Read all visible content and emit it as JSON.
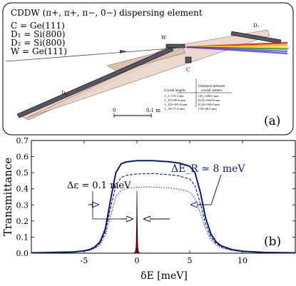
{
  "panel_a": {
    "title": "CDDW (π+, π+, π−, 0−) dispersing element",
    "crystals": [
      "C = Ge(111)",
      "D₁ = Si(800)",
      "D₂ = Si(800)",
      "W = Ge(111)"
    ],
    "labels": {
      "D1": "D₁",
      "D2": "D₂",
      "W": "W",
      "C": "C"
    },
    "table": {
      "col1_header": "Crystal lengths",
      "col1_rows": [
        "L_C=19.1 mm",
        "L_D1=98.6 mm",
        "L_D2=191.0 mm",
        "L_W=71.6 mm"
      ],
      "col2_header_1": "Distances between",
      "col2_header_2": "crystal centers:",
      "col2_rows": [
        "CD₁=200.0 mm",
        "D₁D₂=560.0 mm",
        "D₂W=350.0 mm",
        "CW=40.0 mm"
      ]
    },
    "scale_zero": "0",
    "scale_label": "0.1 m",
    "tag": "(a)"
  },
  "panel_b": {
    "annotation_bandwidth": "ΔE_R ≃ 8 meV",
    "annotation_resolution": "Δε = 0.1 meV",
    "tag": "(b)"
  },
  "colors": {
    "curve": "#0a1a7a",
    "peak_fill": "#8b0000",
    "shading": "#e8d2c4",
    "rainbow": [
      "#ff0000",
      "#ff9900",
      "#ffee00",
      "#33cc33",
      "#3366ff",
      "#8a2be2"
    ]
  },
  "chart_data": {
    "type": "line",
    "xlabel": "δE [meV]",
    "ylabel": "Transmittance",
    "xlim": [
      -10,
      15
    ],
    "ylim": [
      0,
      0.7
    ],
    "xticks": [
      -5,
      0,
      5,
      10
    ],
    "yticks": [
      0.0,
      0.1,
      0.2,
      0.3,
      0.4,
      0.5,
      0.6,
      0.7
    ],
    "grid": false,
    "series": [
      {
        "style": "solid",
        "x": [
          -10,
          -6,
          -5,
          -4.5,
          -4,
          -3.5,
          -3,
          -2.5,
          -2,
          -1.5,
          -1,
          0,
          1.5,
          3,
          4,
          5,
          5.5,
          6,
          6.5,
          7,
          7.5,
          8,
          9,
          10,
          12,
          15
        ],
        "y": [
          0.002,
          0.008,
          0.015,
          0.022,
          0.038,
          0.07,
          0.15,
          0.33,
          0.5,
          0.555,
          0.567,
          0.575,
          0.575,
          0.568,
          0.56,
          0.54,
          0.5,
          0.38,
          0.22,
          0.12,
          0.07,
          0.045,
          0.022,
          0.012,
          0.005,
          0.002
        ]
      },
      {
        "style": "dashed",
        "x": [
          -10,
          -6,
          -5,
          -4.5,
          -4,
          -3.5,
          -3,
          -2.5,
          -2,
          -1.5,
          -1,
          0,
          1.5,
          3,
          4,
          5,
          5.5,
          6,
          6.5,
          7,
          7.5,
          8,
          9,
          10,
          12,
          15
        ],
        "y": [
          0.002,
          0.007,
          0.013,
          0.02,
          0.033,
          0.062,
          0.13,
          0.28,
          0.42,
          0.47,
          0.484,
          0.492,
          0.495,
          0.488,
          0.48,
          0.46,
          0.42,
          0.31,
          0.18,
          0.1,
          0.06,
          0.04,
          0.02,
          0.011,
          0.004,
          0.002
        ]
      },
      {
        "style": "dotted",
        "x": [
          -10,
          -6,
          -5,
          -4.5,
          -4,
          -3.5,
          -3,
          -2.5,
          -2,
          -1.5,
          -1,
          0,
          1.5,
          3,
          4,
          5,
          5.5,
          6,
          6.5,
          7,
          7.5,
          8,
          9,
          10,
          12,
          15
        ],
        "y": [
          0.002,
          0.006,
          0.011,
          0.017,
          0.028,
          0.052,
          0.11,
          0.23,
          0.35,
          0.39,
          0.403,
          0.41,
          0.412,
          0.405,
          0.398,
          0.38,
          0.34,
          0.25,
          0.15,
          0.085,
          0.05,
          0.033,
          0.017,
          0.009,
          0.004,
          0.002
        ]
      },
      {
        "style": "filled-peak",
        "x": [
          -0.3,
          -0.15,
          -0.08,
          -0.04,
          0,
          0.04,
          0.08,
          0.15,
          0.3
        ],
        "y": [
          0,
          0.01,
          0.04,
          0.15,
          0.39,
          0.15,
          0.04,
          0.01,
          0
        ]
      }
    ]
  }
}
